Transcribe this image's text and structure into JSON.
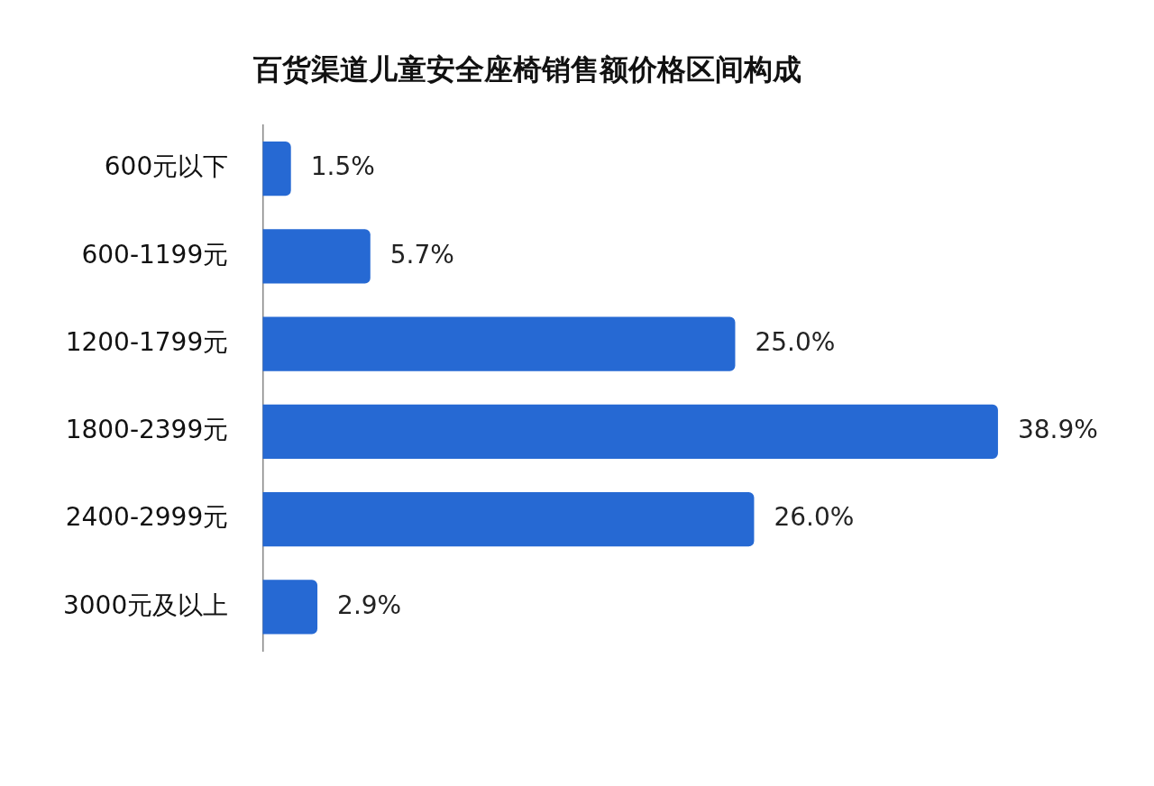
{
  "chart_data": {
    "type": "bar",
    "orientation": "horizontal",
    "title": "百货渠道儿童安全座椅销售额价格区间构成",
    "categories": [
      "600元以下",
      "600-1199元",
      "1200-1799元",
      "1800-2399元",
      "2400-2999元",
      "3000元及以上"
    ],
    "values": [
      1.5,
      5.7,
      25.0,
      38.9,
      26.0,
      2.9
    ],
    "value_labels": [
      "1.5%",
      "5.7%",
      "25.0%",
      "38.9%",
      "26.0%",
      "2.9%"
    ],
    "color": "#2669d3",
    "legend": false
  }
}
